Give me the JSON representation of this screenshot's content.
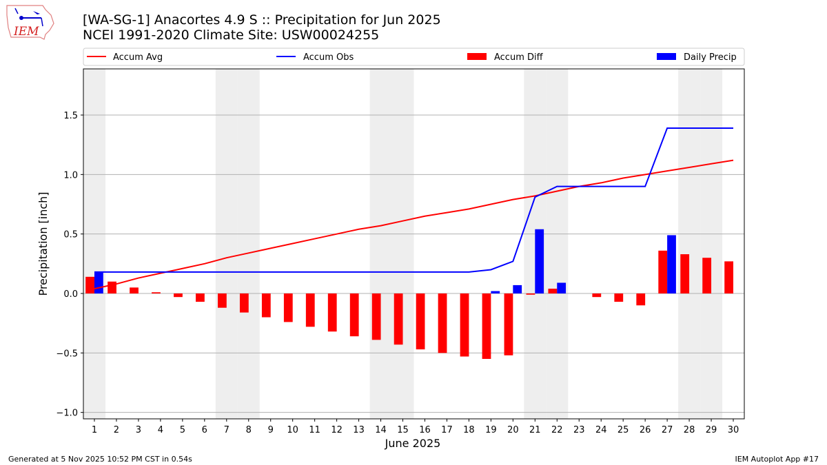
{
  "header": {
    "title_line1": "[WA-SG-1] Anacortes 4.9 S :: Precipitation for Jun 2025",
    "title_line2": "NCEI 1991-2020 Climate Site: USW00024255",
    "logo_text": "IEM"
  },
  "footer": {
    "left": "Generated at 5 Nov 2025 10:52 PM CST in 0.54s",
    "right": "IEM Autoplot App #17"
  },
  "chart_data": {
    "type": "bar+line",
    "xlabel": "June 2025",
    "ylabel": "Precipitation [inch]",
    "ylim": [
      -1.054,
      1.888
    ],
    "xlim": [
      0.5,
      30.5
    ],
    "yticks": [
      -1.0,
      -0.5,
      0.0,
      0.5,
      1.0,
      1.5
    ],
    "ytick_labels": [
      "−1.0",
      "−0.5",
      "0.0",
      "0.5",
      "1.0",
      "1.5"
    ],
    "grid": "horizontal",
    "x": [
      1,
      2,
      3,
      4,
      5,
      6,
      7,
      8,
      9,
      10,
      11,
      12,
      13,
      14,
      15,
      16,
      17,
      18,
      19,
      20,
      21,
      22,
      23,
      24,
      25,
      26,
      27,
      28,
      29,
      30
    ],
    "weekend_days": [
      1,
      7,
      8,
      14,
      15,
      21,
      22,
      28,
      29
    ],
    "legend_placement": "top, outside plot",
    "colors": {
      "avg": "#ff0000",
      "obs": "#0000ff",
      "diff": "#ff0000",
      "daily": "#0000ff",
      "weekend": "#eeeeee",
      "grid": "#b0b0b0"
    },
    "series": [
      {
        "name": "Accum Avg",
        "kind": "line",
        "values": [
          0.04,
          0.08,
          0.13,
          0.17,
          0.21,
          0.25,
          0.3,
          0.34,
          0.38,
          0.42,
          0.46,
          0.5,
          0.54,
          0.57,
          0.61,
          0.65,
          0.68,
          0.71,
          0.75,
          0.79,
          0.82,
          0.86,
          0.9,
          0.93,
          0.97,
          1.0,
          1.03,
          1.06,
          1.09,
          1.12
        ]
      },
      {
        "name": "Accum Obs",
        "kind": "line",
        "values": [
          0.18,
          0.18,
          0.18,
          0.18,
          0.18,
          0.18,
          0.18,
          0.18,
          0.18,
          0.18,
          0.18,
          0.18,
          0.18,
          0.18,
          0.18,
          0.18,
          0.18,
          0.18,
          0.2,
          0.27,
          0.81,
          0.9,
          0.9,
          0.9,
          0.9,
          0.9,
          1.39,
          1.39,
          1.39,
          1.39
        ]
      },
      {
        "name": "Accum Diff",
        "kind": "bar",
        "values": [
          0.14,
          0.1,
          0.05,
          0.01,
          -0.03,
          -0.07,
          -0.12,
          -0.16,
          -0.2,
          -0.24,
          -0.28,
          -0.32,
          -0.36,
          -0.39,
          -0.43,
          -0.47,
          -0.5,
          -0.53,
          -0.55,
          -0.52,
          -0.01,
          0.04,
          0.0,
          -0.03,
          -0.07,
          -0.1,
          0.36,
          0.33,
          0.3,
          0.27
        ]
      },
      {
        "name": "Daily Precip",
        "kind": "bar",
        "values": [
          0.18,
          0,
          0,
          0,
          0,
          0,
          0,
          0,
          0,
          0,
          0,
          0,
          0,
          0,
          0,
          0,
          0,
          0,
          0.02,
          0.07,
          0.54,
          0.09,
          0,
          0,
          0,
          0,
          0.49,
          0,
          0,
          0
        ]
      }
    ]
  }
}
